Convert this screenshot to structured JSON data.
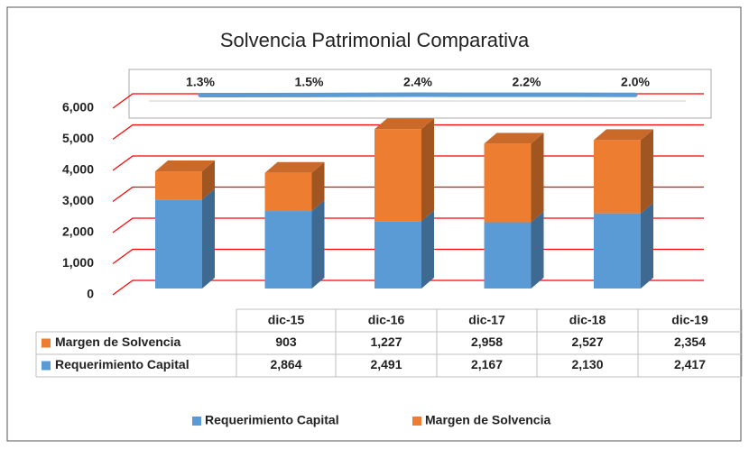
{
  "chart_data": [
    {
      "type": "bar",
      "title": "Solvencia Patrimonial Comparativa",
      "categories": [
        "dic-15",
        "dic-16",
        "dic-17",
        "dic-18",
        "dic-19"
      ],
      "series": [
        {
          "name": "Requerimiento Capital",
          "color": "#5b9bd5",
          "values": [
            2864,
            2491,
            2167,
            2130,
            2417
          ],
          "value_labels": [
            "2,864",
            "2,491",
            "2,167",
            "2,130",
            "2,417"
          ]
        },
        {
          "name": "Margen de Solvencia",
          "color": "#ed7d31",
          "values": [
            903,
            1227,
            2958,
            2527,
            2354
          ],
          "value_labels": [
            "903",
            "1,227",
            "2,958",
            "2,527",
            "2,354"
          ]
        }
      ],
      "ylim": [
        0,
        6000
      ],
      "yticks": [
        0,
        {
          "value": 1000,
          "label": "1,000"
        },
        {
          "value": 2000,
          "label": "2,000"
        },
        {
          "value": 3000,
          "label": "3,000"
        },
        {
          "value": 4000,
          "label": "4,000"
        },
        {
          "value": 5000,
          "label": "5,000"
        },
        {
          "value": 6000,
          "label": "6,000"
        }
      ],
      "grid": true,
      "grid_color": "#ff0000",
      "stacked": true,
      "legend": "bottom"
    },
    {
      "type": "line",
      "values": [
        1.3,
        1.5,
        2.4,
        2.2,
        2.0
      ],
      "value_labels": [
        "1.3%",
        "1.5%",
        "2.4%",
        "2.2%",
        "2.0%"
      ],
      "color": "#5b9bd5",
      "ylim": [
        0,
        100
      ]
    }
  ]
}
